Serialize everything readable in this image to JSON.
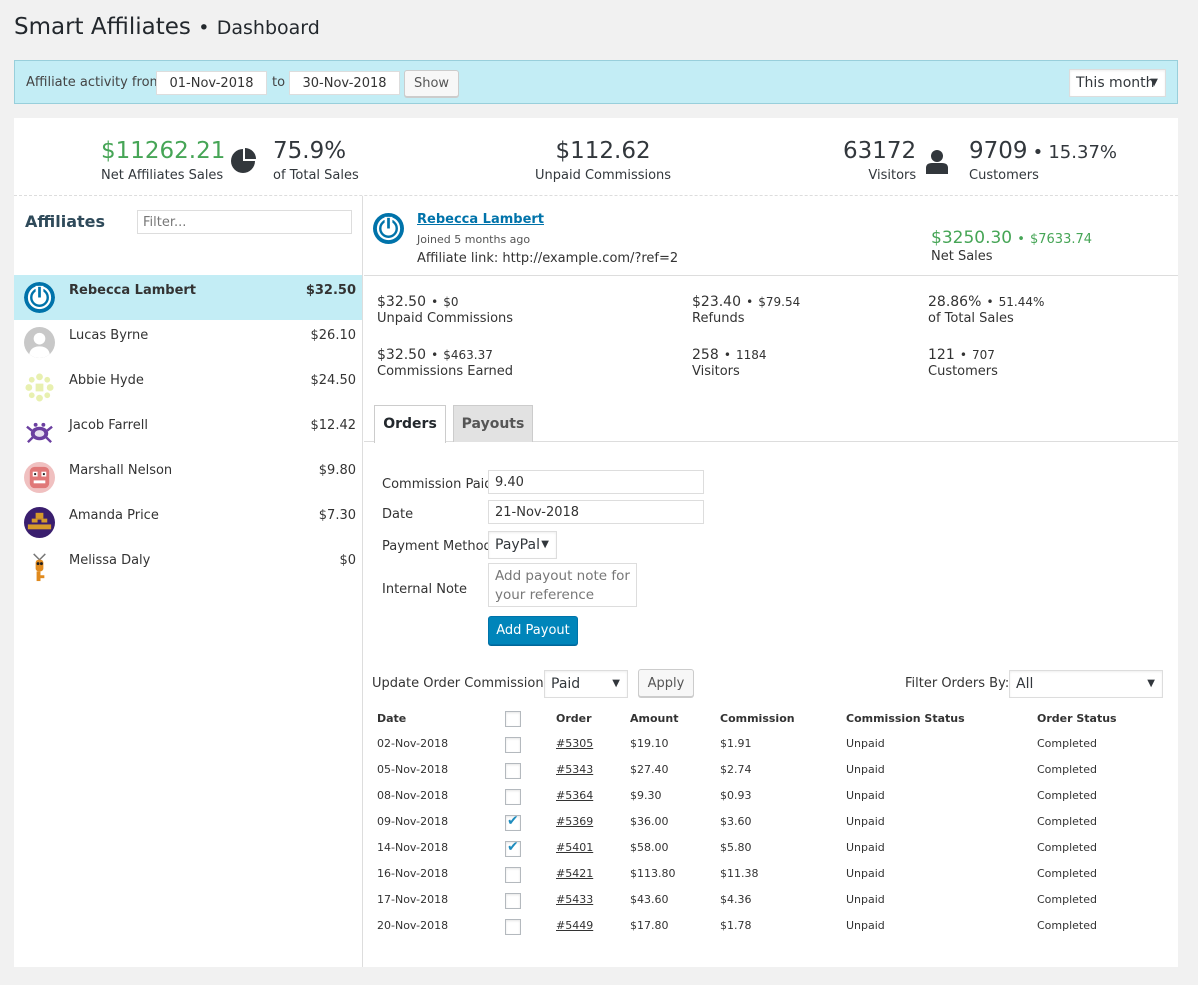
{
  "header": {
    "title": "Smart Affiliates",
    "separator": "•",
    "subtitle": "Dashboard"
  },
  "datebar": {
    "label_from": "Affiliate activity from",
    "from": "01-Nov-2018",
    "label_to": "to",
    "to": "30-Nov-2018",
    "show_label": "Show",
    "period": "This month"
  },
  "kpis": {
    "net_sales": "$11262.21",
    "net_sales_label": "Net Affiliates Sales",
    "pct_total": "75.9%",
    "pct_total_label": "of Total Sales",
    "unpaid": "$112.62",
    "unpaid_label": "Unpaid Commissions",
    "visitors": "63172",
    "visitors_label": "Visitors",
    "customers": "9709",
    "customers_sep": "•",
    "customers_pct": "15.37%",
    "customers_label": "Customers"
  },
  "affiliates": {
    "title": "Affiliates",
    "filter_placeholder": "Filter...",
    "items": [
      {
        "name": "Rebecca Lambert",
        "amount": "$32.50"
      },
      {
        "name": "Lucas Byrne",
        "amount": "$26.10"
      },
      {
        "name": "Abbie Hyde",
        "amount": "$24.50"
      },
      {
        "name": "Jacob Farrell",
        "amount": "$12.42"
      },
      {
        "name": "Marshall Nelson",
        "amount": "$9.80"
      },
      {
        "name": "Amanda Price",
        "amount": "$7.30"
      },
      {
        "name": "Melissa Daly",
        "amount": "$0"
      }
    ]
  },
  "detail": {
    "name": "Rebecca Lambert",
    "joined": "Joined 5 months ago",
    "link": "Affiliate link: http://example.com/?ref=2",
    "net_sales": "$3250.30",
    "net_sales_sep": "•",
    "net_sales_total": "$7633.74",
    "net_sales_label": "Net Sales",
    "stats": {
      "unpaid": "$32.50",
      "unpaid_sep": "•",
      "unpaid_2": "$0",
      "unpaid_label": "Unpaid Commissions",
      "refunds": "$23.40",
      "refunds_sep": "•",
      "refunds_2": "$79.54",
      "refunds_label": "Refunds",
      "pct": "28.86%",
      "pct_sep": "•",
      "pct_2": "51.44%",
      "pct_label": "of Total Sales",
      "earned": "$32.50",
      "earned_sep": "•",
      "earned_2": "$463.37",
      "earned_label": "Commissions Earned",
      "visitors": "258",
      "visitors_sep": "•",
      "visitors_2": "1184",
      "visitors_label": "Visitors",
      "customers": "121",
      "customers_sep": "•",
      "customers_2": "707",
      "customers_label": "Customers"
    }
  },
  "tabs": {
    "orders": "Orders",
    "payouts": "Payouts"
  },
  "payout_form": {
    "commission_label": "Commission Paid",
    "commission_value": "9.40",
    "date_label": "Date",
    "date_value": "21-Nov-2018",
    "method_label": "Payment Method",
    "method_value": "PayPal",
    "note_label": "Internal Note",
    "note_placeholder": "Add payout note for your reference",
    "submit": "Add Payout"
  },
  "orders_toolbar": {
    "update_label": "Update Order Commissions:",
    "update_value": "Paid",
    "apply": "Apply",
    "filter_label": "Filter Orders By:",
    "filter_value": "All"
  },
  "orders": {
    "columns": [
      "Date",
      "Order",
      "Amount",
      "Commission",
      "Commission Status",
      "Order Status"
    ],
    "rows": [
      {
        "date": "02-Nov-2018",
        "checked": false,
        "order": "#5305",
        "amount": "$19.10",
        "commission": "$1.91",
        "cstatus": "Unpaid",
        "ostatus": "Completed"
      },
      {
        "date": "05-Nov-2018",
        "checked": false,
        "order": "#5343",
        "amount": "$27.40",
        "commission": "$2.74",
        "cstatus": "Unpaid",
        "ostatus": "Completed"
      },
      {
        "date": "08-Nov-2018",
        "checked": false,
        "order": "#5364",
        "amount": "$9.30",
        "commission": "$0.93",
        "cstatus": "Unpaid",
        "ostatus": "Completed"
      },
      {
        "date": "09-Nov-2018",
        "checked": true,
        "order": "#5369",
        "amount": "$36.00",
        "commission": "$3.60",
        "cstatus": "Unpaid",
        "ostatus": "Completed"
      },
      {
        "date": "14-Nov-2018",
        "checked": true,
        "order": "#5401",
        "amount": "$58.00",
        "commission": "$5.80",
        "cstatus": "Unpaid",
        "ostatus": "Completed"
      },
      {
        "date": "16-Nov-2018",
        "checked": false,
        "order": "#5421",
        "amount": "$113.80",
        "commission": "$11.38",
        "cstatus": "Unpaid",
        "ostatus": "Completed"
      },
      {
        "date": "17-Nov-2018",
        "checked": false,
        "order": "#5433",
        "amount": "$43.60",
        "commission": "$4.36",
        "cstatus": "Unpaid",
        "ostatus": "Completed"
      },
      {
        "date": "20-Nov-2018",
        "checked": false,
        "order": "#5449",
        "amount": "$17.80",
        "commission": "$1.78",
        "cstatus": "Unpaid",
        "ostatus": "Completed"
      }
    ]
  },
  "colors": {
    "accent": "#0073aa",
    "positive": "#46a556",
    "negative": "#cc0000",
    "highlight": "#c3edf5"
  }
}
